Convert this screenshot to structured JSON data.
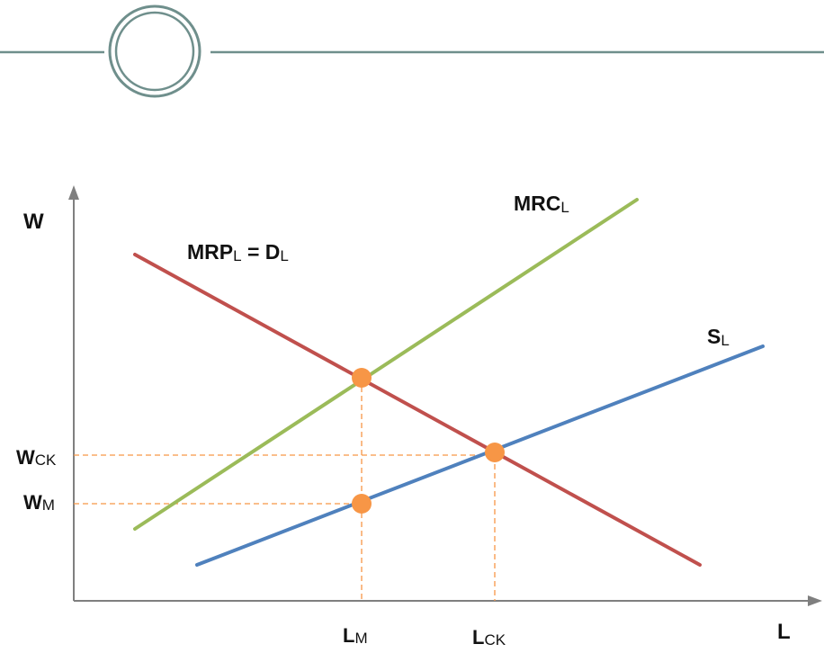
{
  "axes": {
    "y_label": "W",
    "x_label": "L"
  },
  "curves": {
    "demand": {
      "label_main": "MRP",
      "label_sub": "L",
      "label_mid": " = D",
      "label_sub2": "L",
      "color": "#c0504d"
    },
    "mrc": {
      "label_main": "MRC",
      "label_sub": "L",
      "color": "#9bbb59"
    },
    "supply": {
      "label_main": "S",
      "label_sub": "L",
      "color": "#4f81bd"
    }
  },
  "ticks": {
    "w_ck": {
      "main": "W",
      "sub": "CK"
    },
    "w_m": {
      "main": "W",
      "sub": "M"
    },
    "l_m": {
      "main": "L",
      "sub": "M"
    },
    "l_ck": {
      "main": "L",
      "sub": "CK"
    }
  },
  "colors": {
    "point": "#f79646",
    "guide": "#f79646",
    "axis": "#7f7f7f",
    "header_line": "#6f8f8c",
    "header_circle": "#6f8f8c"
  }
}
